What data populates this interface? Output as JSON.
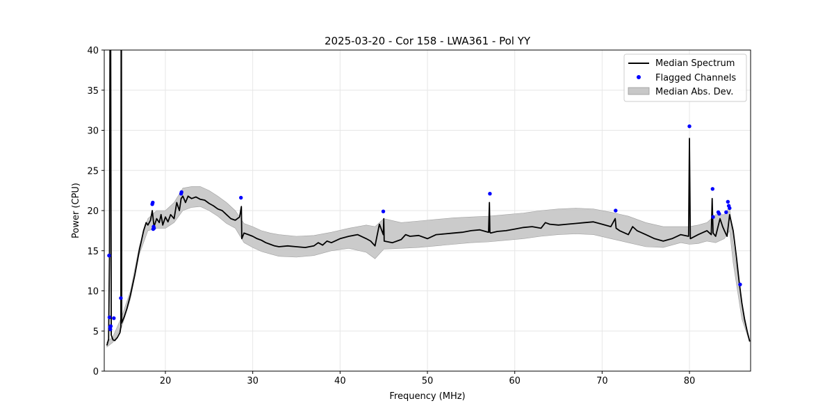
{
  "chart_data": {
    "type": "line",
    "title": "2025-03-20 - Cor 158 - LWA361 - Pol YY",
    "xlabel": "Frequency (MHz)",
    "ylabel": "Power (CPU)",
    "xlim": [
      13,
      87
    ],
    "ylim": [
      0,
      40
    ],
    "x_ticks": [
      20,
      30,
      40,
      50,
      60,
      70,
      80
    ],
    "y_ticks": [
      0,
      5,
      10,
      15,
      20,
      25,
      30,
      35,
      40
    ],
    "grid": true,
    "legend_position": "top-right",
    "legend": [
      {
        "label": "Median Spectrum",
        "kind": "line",
        "color": "#000000"
      },
      {
        "label": "Flagged Channels",
        "kind": "marker",
        "color": "#0000ff"
      },
      {
        "label": "Median Abs. Dev.",
        "kind": "band",
        "color": "#c8c8c8"
      }
    ],
    "series": [
      {
        "name": "Median Spectrum",
        "kind": "line",
        "color": "#000000",
        "x": [
          13.3,
          13.5,
          13.6,
          13.7,
          13.8,
          13.9,
          14.0,
          14.2,
          14.5,
          14.8,
          14.9,
          14.95,
          15.0,
          15.3,
          15.6,
          16.0,
          16.5,
          17.0,
          17.5,
          17.8,
          18.0,
          18.3,
          18.5,
          18.7,
          19.0,
          19.3,
          19.5,
          19.7,
          20.0,
          20.3,
          20.6,
          21.0,
          21.3,
          21.6,
          21.8,
          22.0,
          22.3,
          22.6,
          23.0,
          23.5,
          24.0,
          24.5,
          25.0,
          25.5,
          26.0,
          26.5,
          27.0,
          27.5,
          28.0,
          28.5,
          28.7,
          28.75,
          29.0,
          29.5,
          30.0,
          30.5,
          31.0,
          31.5,
          32.0,
          32.5,
          33.0,
          34.0,
          35.0,
          36.0,
          37.0,
          37.5,
          38.0,
          38.5,
          39.0,
          40.0,
          41.0,
          42.0,
          43.0,
          43.5,
          44.0,
          44.5,
          44.95,
          45.0,
          45.05,
          46.0,
          47.0,
          47.5,
          48.0,
          49.0,
          50.0,
          51.0,
          52.0,
          53.0,
          54.0,
          55.0,
          56.0,
          57.0,
          57.1,
          57.15,
          57.25,
          58.0,
          59.0,
          60.0,
          61.0,
          62.0,
          63.0,
          63.5,
          64.0,
          65.0,
          66.0,
          67.0,
          68.0,
          69.0,
          70.0,
          71.0,
          71.5,
          71.6,
          72.0,
          73.0,
          73.5,
          74.0,
          75.0,
          76.0,
          77.0,
          78.0,
          79.0,
          79.9,
          80.0,
          80.1,
          81.0,
          82.0,
          82.5,
          82.6,
          82.7,
          83.0,
          83.5,
          83.8,
          84.0,
          84.3,
          84.6,
          85.0,
          85.4,
          85.7,
          86.0,
          86.3,
          86.6,
          86.9
        ],
        "y": [
          3.2,
          4.0,
          14.0,
          60.0,
          4.5,
          4.2,
          3.9,
          3.8,
          4.2,
          4.8,
          5.5,
          60.0,
          6.0,
          6.8,
          7.8,
          9.5,
          12.0,
          15.0,
          17.5,
          18.5,
          18.2,
          18.8,
          20.0,
          18.0,
          19.0,
          18.5,
          19.5,
          18.2,
          19.2,
          18.6,
          19.5,
          19.0,
          21.0,
          20.0,
          21.5,
          21.8,
          21.0,
          21.8,
          21.5,
          21.7,
          21.4,
          21.3,
          20.9,
          20.6,
          20.2,
          20.0,
          19.5,
          19.0,
          18.8,
          19.2,
          20.5,
          16.5,
          17.2,
          17.0,
          16.8,
          16.5,
          16.3,
          16.0,
          15.8,
          15.6,
          15.5,
          15.6,
          15.5,
          15.4,
          15.6,
          16.0,
          15.7,
          16.2,
          16.0,
          16.5,
          16.8,
          17.0,
          16.5,
          16.2,
          15.6,
          18.3,
          17.0,
          19.0,
          16.2,
          16.0,
          16.4,
          17.0,
          16.8,
          16.9,
          16.5,
          17.0,
          17.1,
          17.2,
          17.3,
          17.5,
          17.6,
          17.3,
          21.0,
          17.3,
          17.2,
          17.4,
          17.5,
          17.7,
          17.9,
          18.0,
          17.8,
          18.5,
          18.3,
          18.2,
          18.3,
          18.4,
          18.5,
          18.6,
          18.3,
          18.0,
          19.0,
          17.8,
          17.5,
          17.0,
          18.0,
          17.5,
          17.0,
          16.5,
          16.2,
          16.5,
          17.0,
          16.8,
          29.0,
          16.5,
          17.0,
          17.5,
          17.0,
          21.5,
          17.2,
          16.8,
          19.0,
          18.0,
          17.5,
          16.8,
          19.5,
          17.5,
          14.0,
          11.0,
          8.5,
          6.5,
          5.0,
          3.7
        ]
      },
      {
        "name": "Median Abs. Dev.",
        "kind": "band",
        "color": "#c8c8c8",
        "x": [
          13.3,
          14.0,
          15.0,
          16.0,
          17.0,
          18.0,
          19.0,
          20.0,
          21.0,
          22.0,
          23.0,
          24.0,
          25.0,
          26.0,
          27.0,
          28.0,
          29.0,
          30.0,
          31.0,
          32.0,
          33.0,
          35.0,
          37.0,
          39.0,
          41.0,
          43.0,
          44.0,
          45.0,
          47.0,
          49.0,
          51.0,
          53.0,
          55.0,
          57.0,
          59.0,
          61.0,
          63.0,
          65.0,
          67.0,
          69.0,
          71.0,
          73.0,
          75.0,
          77.0,
          79.0,
          80.0,
          81.0,
          82.0,
          83.0,
          84.0,
          84.6,
          85.0,
          86.0,
          86.9
        ],
        "lower": [
          3.0,
          3.6,
          5.5,
          9.0,
          14.5,
          17.5,
          17.8,
          17.8,
          18.5,
          20.0,
          20.4,
          20.5,
          20.0,
          19.3,
          18.4,
          17.8,
          16.0,
          15.4,
          14.9,
          14.6,
          14.3,
          14.2,
          14.4,
          15.0,
          15.3,
          14.8,
          14.0,
          15.2,
          15.3,
          15.4,
          15.6,
          15.8,
          16.0,
          16.1,
          16.3,
          16.5,
          16.8,
          17.0,
          17.1,
          17.0,
          16.5,
          16.0,
          15.5,
          15.4,
          16.0,
          15.8,
          15.9,
          16.2,
          16.0,
          16.5,
          17.5,
          13.5,
          6.5,
          3.6
        ],
        "upper": [
          3.6,
          4.3,
          6.8,
          10.0,
          15.5,
          19.0,
          20.0,
          20.0,
          21.0,
          22.8,
          23.0,
          23.0,
          22.5,
          21.8,
          21.0,
          20.0,
          18.4,
          18.0,
          17.5,
          17.2,
          17.0,
          16.8,
          16.9,
          17.3,
          17.8,
          18.2,
          18.0,
          19.0,
          18.5,
          18.7,
          18.9,
          19.1,
          19.2,
          19.3,
          19.5,
          19.7,
          20.0,
          20.2,
          20.3,
          20.2,
          19.8,
          19.3,
          18.5,
          18.0,
          18.0,
          18.0,
          18.2,
          18.5,
          19.5,
          19.5,
          20.5,
          16.0,
          8.5,
          3.6
        ]
      },
      {
        "name": "Flagged Channels",
        "kind": "scatter",
        "color": "#0000ff",
        "x": [
          13.55,
          13.6,
          13.65,
          13.7,
          13.75,
          14.1,
          14.9,
          18.5,
          18.55,
          18.6,
          18.65,
          18.7,
          21.8,
          21.85,
          28.65,
          44.95,
          57.15,
          71.55,
          80.0,
          82.65,
          82.7,
          83.3,
          83.4,
          84.2,
          84.4,
          84.5,
          84.6,
          85.8
        ],
        "y": [
          14.4,
          6.7,
          5.5,
          5.2,
          5.6,
          6.6,
          9.1,
          20.8,
          21.0,
          17.7,
          18.0,
          17.8,
          22.1,
          22.3,
          21.6,
          19.9,
          22.1,
          20.0,
          30.5,
          22.7,
          19.2,
          19.8,
          19.6,
          19.8,
          21.1,
          20.6,
          20.3,
          10.8
        ]
      }
    ]
  }
}
